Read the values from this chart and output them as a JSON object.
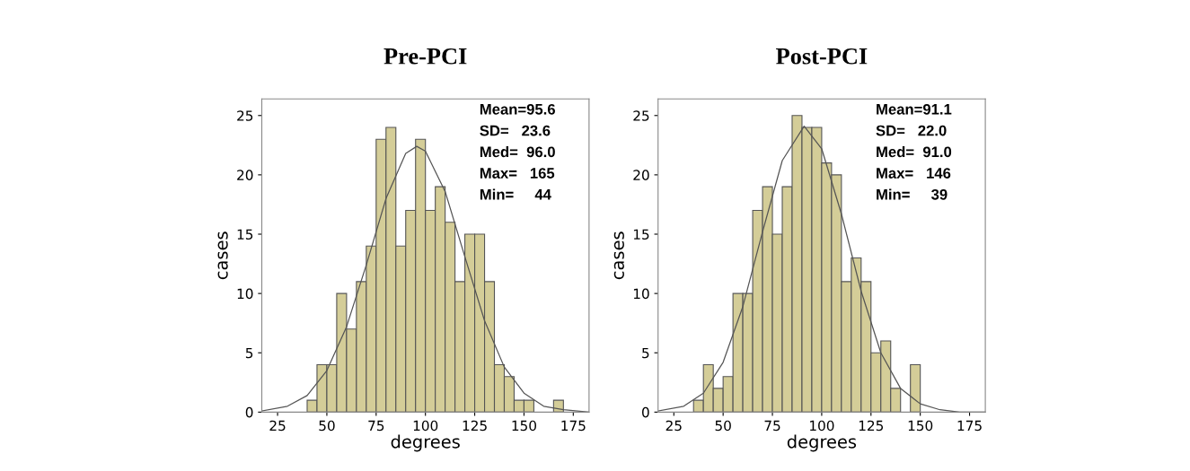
{
  "chart_data": [
    {
      "type": "histogram",
      "title": "Pre-PCI",
      "xlabel": "degrees",
      "ylabel": "cases",
      "color": "#d4cd98",
      "bins": [
        40,
        45,
        50,
        55,
        60,
        65,
        70,
        75,
        80,
        85,
        90,
        95,
        100,
        105,
        110,
        115,
        120,
        125,
        130,
        135,
        140,
        145,
        150,
        155,
        160,
        165,
        170
      ],
      "values": [
        1,
        4,
        4,
        10,
        7,
        11,
        14,
        23,
        24,
        14,
        17,
        23,
        17,
        19,
        16,
        11,
        15,
        15,
        11,
        4,
        3,
        1,
        1,
        0,
        0,
        1
      ],
      "series": [
        {
          "type": "line",
          "color": "#555555",
          "x": [
            17,
            30,
            40,
            50,
            60,
            70,
            80,
            90,
            95.6,
            100,
            110,
            120,
            130,
            140,
            150,
            160,
            170,
            183
          ],
          "values": [
            0.1,
            0.5,
            1.4,
            3.5,
            7.2,
            12.4,
            18.0,
            21.8,
            22.4,
            22.0,
            18.6,
            13.1,
            7.7,
            3.8,
            1.6,
            0.5,
            0.2,
            0.0
          ]
        }
      ],
      "xlim": [
        17,
        183
      ],
      "xticks": [
        25,
        50,
        75,
        100,
        125,
        150,
        175
      ],
      "ylim": [
        0,
        26.4
      ],
      "yticks": [
        0,
        5,
        10,
        15,
        20,
        25
      ],
      "grid": false,
      "annotations": [
        "Mean=95.6",
        "SD=   23.6",
        "Med=  96.0",
        "Max=   165",
        "Min=     44"
      ]
    },
    {
      "type": "histogram",
      "title": "Post-PCI",
      "xlabel": "degrees",
      "ylabel": "cases",
      "color": "#d4cd98",
      "bins": [
        35,
        40,
        45,
        50,
        55,
        60,
        65,
        70,
        75,
        80,
        85,
        90,
        95,
        100,
        105,
        110,
        115,
        120,
        125,
        130,
        135,
        140,
        145,
        150
      ],
      "values": [
        1,
        4,
        2,
        3,
        10,
        10,
        17,
        19,
        15,
        19,
        25,
        24,
        24,
        21,
        20,
        11,
        13,
        11,
        5,
        6,
        2,
        0,
        4
      ],
      "series": [
        {
          "type": "line",
          "color": "#555555",
          "x": [
            17,
            30,
            40,
            50,
            60,
            70,
            80,
            91.1,
            100,
            110,
            120,
            130,
            140,
            150,
            160,
            170,
            183
          ],
          "values": [
            0.1,
            0.5,
            1.6,
            4.2,
            8.9,
            15.2,
            21.2,
            24.1,
            22.2,
            16.7,
            10.2,
            5.0,
            2.0,
            0.7,
            0.2,
            0.0,
            0.0
          ]
        }
      ],
      "xlim": [
        17,
        183
      ],
      "xticks": [
        25,
        50,
        75,
        100,
        125,
        150,
        175
      ],
      "ylim": [
        0,
        26.4
      ],
      "yticks": [
        0,
        5,
        10,
        15,
        20,
        25
      ],
      "grid": false,
      "annotations": [
        "Mean=91.1",
        "SD=   22.0",
        "Med=  91.0",
        "Max=   146",
        "Min=     39"
      ]
    }
  ]
}
